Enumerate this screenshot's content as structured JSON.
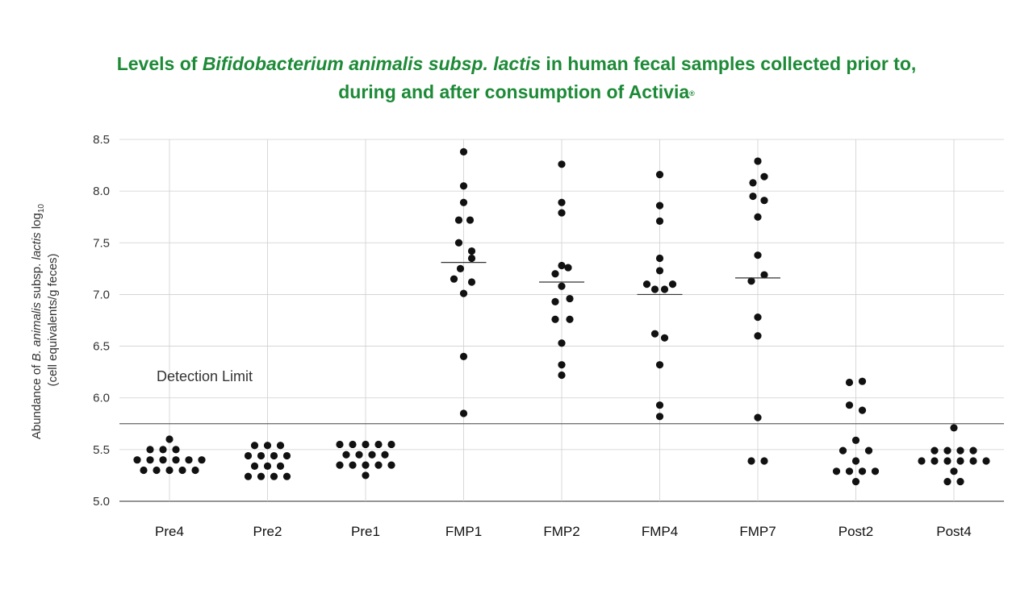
{
  "chart_data": {
    "type": "scatter",
    "title_parts": {
      "prefix": "Levels of ",
      "italic": "Bifidobacterium animalis subsp. lactis",
      "suffix": " in human fecal samples collected prior to,",
      "line2": "during and after consumption of Activia",
      "mark": "®"
    },
    "ylabel": {
      "line1_a": "Abundance of ",
      "line1_b": "B. animalis",
      "line1_c": " subsp. ",
      "line1_d": "lactis",
      "line1_e": " log",
      "line1_sub": "10",
      "line2": "(cell equivalents/g feces)"
    },
    "ylim": [
      5.0,
      8.5
    ],
    "yticks": [
      "5.0",
      "5.5",
      "6.0",
      "6.5",
      "7.0",
      "7.5",
      "8.0",
      "8.5"
    ],
    "categories": [
      "Pre4",
      "Pre2",
      "Pre1",
      "FMP1",
      "FMP2",
      "FMP4",
      "FMP7",
      "Post2",
      "Post4"
    ],
    "detection_limit": {
      "label": "Detection Limit",
      "value": 5.75
    },
    "series": [
      {
        "name": "Pre4",
        "median": null,
        "points": [
          [
            0,
            5.6
          ],
          [
            -24,
            5.5
          ],
          [
            -8,
            5.5
          ],
          [
            8,
            5.5
          ],
          [
            -40,
            5.4
          ],
          [
            -24,
            5.4
          ],
          [
            -8,
            5.4
          ],
          [
            8,
            5.4
          ],
          [
            24,
            5.4
          ],
          [
            40,
            5.4
          ],
          [
            -32,
            5.3
          ],
          [
            -16,
            5.3
          ],
          [
            0,
            5.3
          ],
          [
            16,
            5.3
          ],
          [
            32,
            5.3
          ]
        ]
      },
      {
        "name": "Pre2",
        "median": null,
        "points": [
          [
            -16,
            5.54
          ],
          [
            0,
            5.54
          ],
          [
            16,
            5.54
          ],
          [
            -24,
            5.44
          ],
          [
            -8,
            5.44
          ],
          [
            8,
            5.44
          ],
          [
            24,
            5.44
          ],
          [
            -16,
            5.34
          ],
          [
            0,
            5.34
          ],
          [
            16,
            5.34
          ],
          [
            -24,
            5.24
          ],
          [
            -8,
            5.24
          ],
          [
            8,
            5.24
          ],
          [
            24,
            5.24
          ]
        ]
      },
      {
        "name": "Pre1",
        "median": null,
        "points": [
          [
            -32,
            5.55
          ],
          [
            -16,
            5.55
          ],
          [
            0,
            5.55
          ],
          [
            16,
            5.55
          ],
          [
            32,
            5.55
          ],
          [
            -24,
            5.45
          ],
          [
            -8,
            5.45
          ],
          [
            8,
            5.45
          ],
          [
            24,
            5.45
          ],
          [
            -32,
            5.35
          ],
          [
            -16,
            5.35
          ],
          [
            0,
            5.35
          ],
          [
            16,
            5.35
          ],
          [
            32,
            5.35
          ],
          [
            0,
            5.25
          ]
        ]
      },
      {
        "name": "FMP1",
        "median": 7.31,
        "points": [
          [
            0,
            8.38
          ],
          [
            0,
            8.05
          ],
          [
            0,
            7.89
          ],
          [
            -6,
            7.72
          ],
          [
            8,
            7.72
          ],
          [
            -6,
            7.5
          ],
          [
            10,
            7.42
          ],
          [
            10,
            7.35
          ],
          [
            -4,
            7.25
          ],
          [
            -12,
            7.15
          ],
          [
            10,
            7.12
          ],
          [
            0,
            7.01
          ],
          [
            0,
            6.4
          ],
          [
            0,
            5.85
          ]
        ]
      },
      {
        "name": "FMP2",
        "median": 7.12,
        "points": [
          [
            0,
            8.26
          ],
          [
            0,
            7.89
          ],
          [
            0,
            7.79
          ],
          [
            0,
            7.28
          ],
          [
            8,
            7.26
          ],
          [
            -8,
            7.2
          ],
          [
            0,
            7.08
          ],
          [
            10,
            6.96
          ],
          [
            -8,
            6.93
          ],
          [
            -8,
            6.76
          ],
          [
            10,
            6.76
          ],
          [
            0,
            6.53
          ],
          [
            0,
            6.32
          ],
          [
            0,
            6.22
          ]
        ]
      },
      {
        "name": "FMP4",
        "median": 7.0,
        "points": [
          [
            0,
            8.16
          ],
          [
            0,
            7.86
          ],
          [
            0,
            7.71
          ],
          [
            0,
            7.35
          ],
          [
            0,
            7.23
          ],
          [
            -16,
            7.1
          ],
          [
            16,
            7.1
          ],
          [
            -6,
            7.05
          ],
          [
            6,
            7.05
          ],
          [
            -6,
            6.62
          ],
          [
            6,
            6.58
          ],
          [
            0,
            6.32
          ],
          [
            0,
            5.93
          ],
          [
            0,
            5.82
          ]
        ]
      },
      {
        "name": "FMP7",
        "median": 7.16,
        "points": [
          [
            0,
            8.29
          ],
          [
            -6,
            8.08
          ],
          [
            8,
            8.14
          ],
          [
            -6,
            7.95
          ],
          [
            8,
            7.91
          ],
          [
            0,
            7.75
          ],
          [
            0,
            7.38
          ],
          [
            8,
            7.19
          ],
          [
            -8,
            7.13
          ],
          [
            0,
            6.78
          ],
          [
            0,
            6.6
          ],
          [
            0,
            5.81
          ],
          [
            -8,
            5.39
          ],
          [
            8,
            5.39
          ]
        ]
      },
      {
        "name": "Post2",
        "median": null,
        "points": [
          [
            -8,
            6.15
          ],
          [
            8,
            6.16
          ],
          [
            -8,
            5.93
          ],
          [
            8,
            5.88
          ],
          [
            0,
            5.59
          ],
          [
            -16,
            5.49
          ],
          [
            16,
            5.49
          ],
          [
            0,
            5.39
          ],
          [
            -24,
            5.29
          ],
          [
            -8,
            5.29
          ],
          [
            8,
            5.29
          ],
          [
            24,
            5.29
          ],
          [
            0,
            5.19
          ]
        ]
      },
      {
        "name": "Post4",
        "median": null,
        "points": [
          [
            0,
            5.71
          ],
          [
            -24,
            5.49
          ],
          [
            -8,
            5.49
          ],
          [
            8,
            5.49
          ],
          [
            24,
            5.49
          ],
          [
            -40,
            5.39
          ],
          [
            -24,
            5.39
          ],
          [
            -8,
            5.39
          ],
          [
            8,
            5.39
          ],
          [
            24,
            5.39
          ],
          [
            40,
            5.39
          ],
          [
            0,
            5.29
          ],
          [
            -8,
            5.19
          ],
          [
            8,
            5.19
          ]
        ]
      }
    ],
    "colors": {
      "title": "#1d8a37",
      "point": "#111111",
      "grid": "#cfcfcf",
      "axis": "#555555"
    }
  }
}
